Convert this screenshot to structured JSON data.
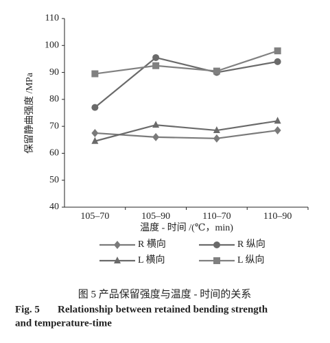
{
  "chart_data": {
    "type": "line",
    "y_label": "保留静曲强度 /MPa",
    "x_label": "温度 - 时间 /(℃，min)",
    "categories": [
      "105–70",
      "105–90",
      "110–70",
      "110–90"
    ],
    "series": [
      {
        "name": "R 横向",
        "color": "#7a7a7a",
        "marker": "diamond",
        "values": [
          67.5,
          66,
          65.5,
          68.5
        ]
      },
      {
        "name": "R 纵向",
        "color": "#6a6a6a",
        "marker": "circle",
        "values": [
          77,
          95.5,
          90,
          94
        ]
      },
      {
        "name": "L 横向",
        "color": "#6a6a6a",
        "marker": "triangle",
        "values": [
          64.5,
          70.5,
          68.5,
          72
        ]
      },
      {
        "name": "L 纵向",
        "color": "#808080",
        "marker": "square",
        "values": [
          89.5,
          92.5,
          90.5,
          98
        ]
      }
    ],
    "ylim": [
      40,
      110
    ],
    "yticks": [
      40,
      50,
      60,
      70,
      80,
      90,
      100,
      110
    ],
    "caption_cn": "图 5   产品保留强度与温度 - 时间的关系",
    "caption_en_label": "Fig. 5",
    "caption_en": [
      "Relationship between retained bending strength",
      "and temperature-time"
    ]
  }
}
